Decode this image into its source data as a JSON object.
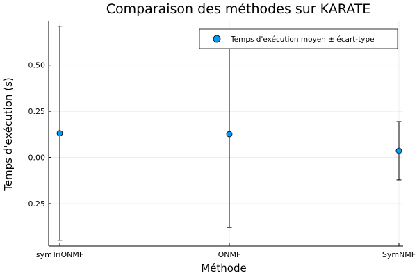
{
  "chart_data": {
    "type": "scatter",
    "title": "Comparaison des méthodes sur KARATE",
    "xlabel": "Méthode",
    "ylabel": "Temps d'exécution (s)",
    "categories": [
      "symTriONMF",
      "ONMF",
      "SymNMF"
    ],
    "series": [
      {
        "name": "Temps d'exécution moyen ± écart-type",
        "color": "#009af9",
        "values": [
          0.131,
          0.126,
          0.036
        ],
        "errors": [
          0.58,
          0.505,
          0.158
        ]
      }
    ],
    "ylim": [
      -0.48,
      0.74
    ],
    "yticks": [
      -0.25,
      0.0,
      0.25,
      0.5
    ],
    "ytick_labels": [
      "−0.25",
      "0.00",
      "0.25",
      "0.50"
    ],
    "grid": true,
    "legend_position": "top-right"
  }
}
